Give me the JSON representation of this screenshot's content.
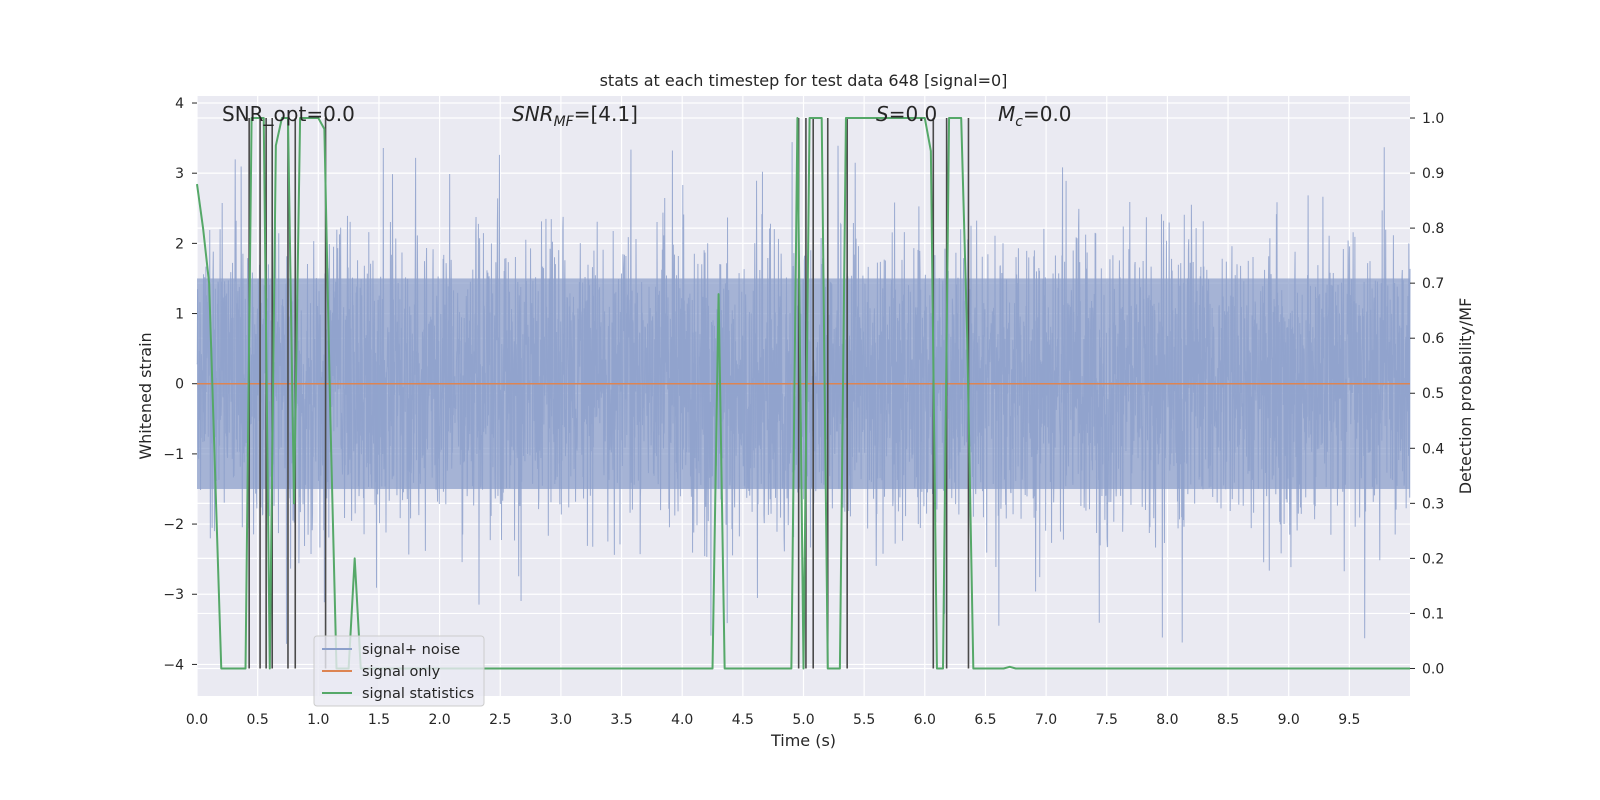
{
  "chart_data": {
    "type": "line",
    "title": "stats at each timestep for test data 648 [signal=0]",
    "xlabel": "Time (s)",
    "ylabel": "Whitened strain",
    "y2label": "Detection probability/MF",
    "xlim": [
      0.0,
      10.0
    ],
    "ylim": [
      -4.45,
      4.1
    ],
    "y2lim": [
      -0.05,
      1.04
    ],
    "grid": true,
    "legend_position": "lower-left",
    "x_ticks": [
      "0.0",
      "0.5",
      "1.0",
      "1.5",
      "2.0",
      "2.5",
      "3.0",
      "3.5",
      "4.0",
      "4.5",
      "5.0",
      "5.5",
      "6.0",
      "6.5",
      "7.0",
      "7.5",
      "8.0",
      "8.5",
      "9.0",
      "9.5"
    ],
    "x_tick_values": [
      0.0,
      0.5,
      1.0,
      1.5,
      2.0,
      2.5,
      3.0,
      3.5,
      4.0,
      4.5,
      5.0,
      5.5,
      6.0,
      6.5,
      7.0,
      7.5,
      8.0,
      8.5,
      9.0,
      9.5
    ],
    "y_ticks": [
      "4",
      "3",
      "2",
      "1",
      "0",
      "−1",
      "−2",
      "−3",
      "−4"
    ],
    "y_tick_values": [
      4,
      3,
      2,
      1,
      0,
      -1,
      -2,
      -3,
      -4
    ],
    "y2_ticks": [
      "1.0",
      "0.9",
      "0.8",
      "0.7",
      "0.6",
      "0.5",
      "0.4",
      "0.3",
      "0.2",
      "0.1",
      "0.0"
    ],
    "y2_tick_values": [
      1.0,
      0.9,
      0.8,
      0.7,
      0.6,
      0.5,
      0.4,
      0.3,
      0.2,
      0.1,
      0.0
    ],
    "annotations": {
      "snr_opt": "SNR_opt=0.0",
      "snr_mf_main": "SNR",
      "snr_mf_sub": "MF",
      "snr_mf_value": "=[4.1]",
      "s_sym": "S",
      "s_value": "=0.0",
      "mc_main": "M",
      "mc_sub": "c",
      "mc_value": "=0.0"
    },
    "series": [
      {
        "name": "signal+ noise",
        "color": "#8da0cb",
        "axis": "left",
        "kind": "dense-noise",
        "core_band": [
          -1.5,
          1.5
        ],
        "extent": [
          -3.8,
          3.6
        ]
      },
      {
        "name": "signal only",
        "color": "#dd8452",
        "axis": "left",
        "x": [
          0.0,
          10.0
        ],
        "y": [
          0.0,
          0.0
        ]
      },
      {
        "name": "signal statistics",
        "color": "#55a868",
        "axis": "right",
        "x": [
          0.0,
          0.05,
          0.1,
          0.15,
          0.2,
          0.25,
          0.3,
          0.35,
          0.4,
          0.45,
          0.5,
          0.55,
          0.6,
          0.65,
          0.7,
          0.75,
          0.8,
          0.85,
          0.9,
          0.95,
          1.0,
          1.05,
          1.1,
          1.15,
          1.2,
          1.25,
          1.3,
          1.35,
          1.4,
          1.45,
          1.5,
          4.2,
          4.25,
          4.3,
          4.35,
          4.4,
          4.9,
          4.95,
          5.0,
          5.05,
          5.1,
          5.15,
          5.2,
          5.25,
          5.3,
          5.35,
          5.4,
          5.5,
          6.0,
          6.05,
          6.1,
          6.15,
          6.2,
          6.25,
          6.3,
          6.35,
          6.4,
          6.45,
          6.5,
          6.55,
          6.6,
          6.65,
          6.7,
          6.75,
          10.0
        ],
        "y": [
          0.88,
          0.8,
          0.7,
          0.35,
          0.0,
          0.0,
          0.0,
          0.0,
          0.0,
          1.0,
          1.0,
          1.0,
          0.0,
          0.95,
          1.0,
          1.0,
          0.3,
          1.0,
          1.0,
          1.0,
          1.0,
          0.98,
          0.45,
          0.0,
          0.0,
          0.0,
          0.2,
          0.0,
          0.0,
          0.0,
          0.0,
          0.0,
          0.0,
          0.68,
          0.0,
          0.0,
          0.0,
          1.0,
          0.0,
          1.0,
          1.0,
          1.0,
          0.0,
          0.0,
          0.0,
          1.0,
          1.0,
          1.0,
          1.0,
          0.94,
          0.0,
          0.0,
          1.0,
          1.0,
          1.0,
          0.6,
          0.0,
          0.0,
          0.0,
          0.0,
          0.0,
          0.0,
          0.003,
          0.0,
          0.0
        ]
      }
    ],
    "event_markers": {
      "color": "#4a4a4a",
      "top": 1.0,
      "x": [
        0.43,
        0.52,
        0.57,
        0.62,
        0.75,
        0.81,
        1.06,
        4.96,
        5.02,
        5.08,
        5.2,
        5.36,
        6.07,
        6.18,
        6.36
      ],
      "bottom": [
        0.0,
        0.0,
        0.0,
        0.0,
        0.0,
        0.0,
        0.0,
        0.0,
        0.0,
        0.0,
        0.0,
        0.0,
        0.0,
        0.0,
        0.0
      ]
    }
  }
}
